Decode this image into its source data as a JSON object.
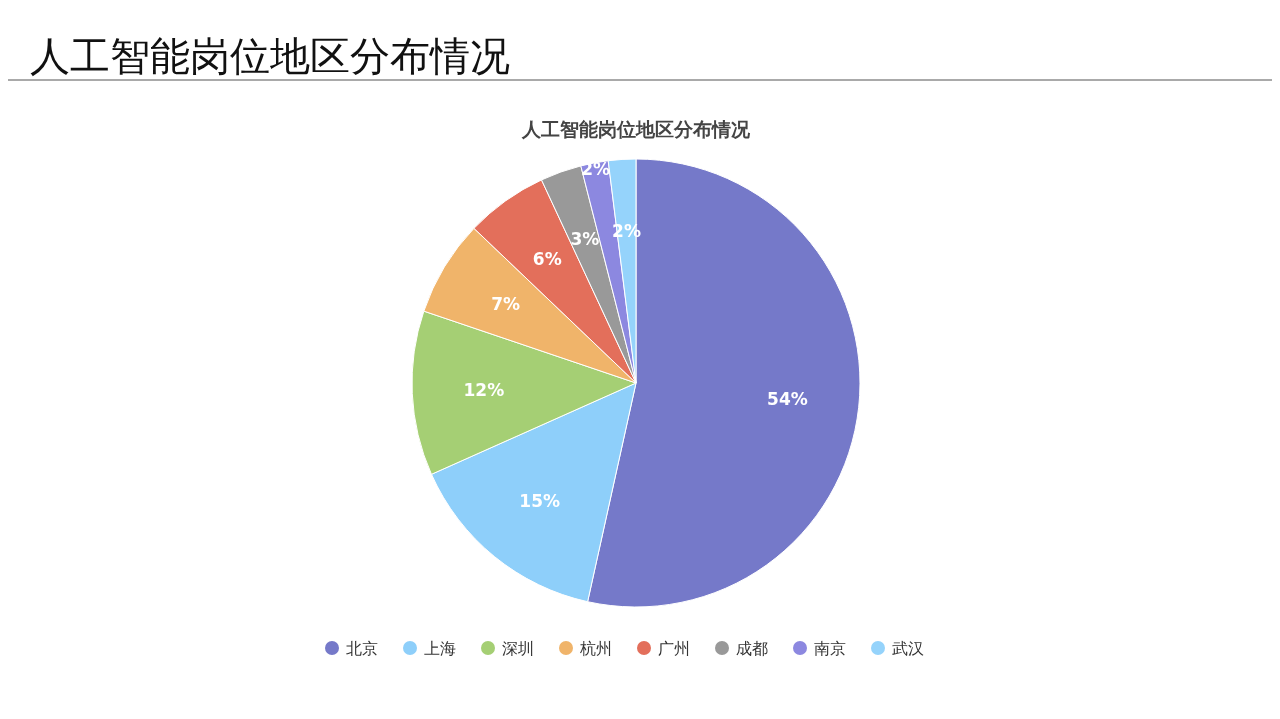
{
  "chart_data": {
    "type": "pie",
    "title": "人工智能岗位地区分布情况",
    "subtitle": "人工智能岗位地区分布情况",
    "categories": [
      "北京",
      "上海",
      "深圳",
      "杭州",
      "广州",
      "成都",
      "南京",
      "武汉"
    ],
    "values": [
      54,
      15,
      12,
      7,
      6,
      3,
      2,
      2
    ],
    "value_labels": [
      "54%",
      "15%",
      "12%",
      "7%",
      "6%",
      "3%",
      "2%",
      "2%"
    ],
    "colors": [
      "#7579c9",
      "#8ecffa",
      "#a5cf74",
      "#f0b46a",
      "#e36f5b",
      "#999999",
      "#8c88e0",
      "#95d3fb"
    ],
    "legend": "bottom"
  }
}
